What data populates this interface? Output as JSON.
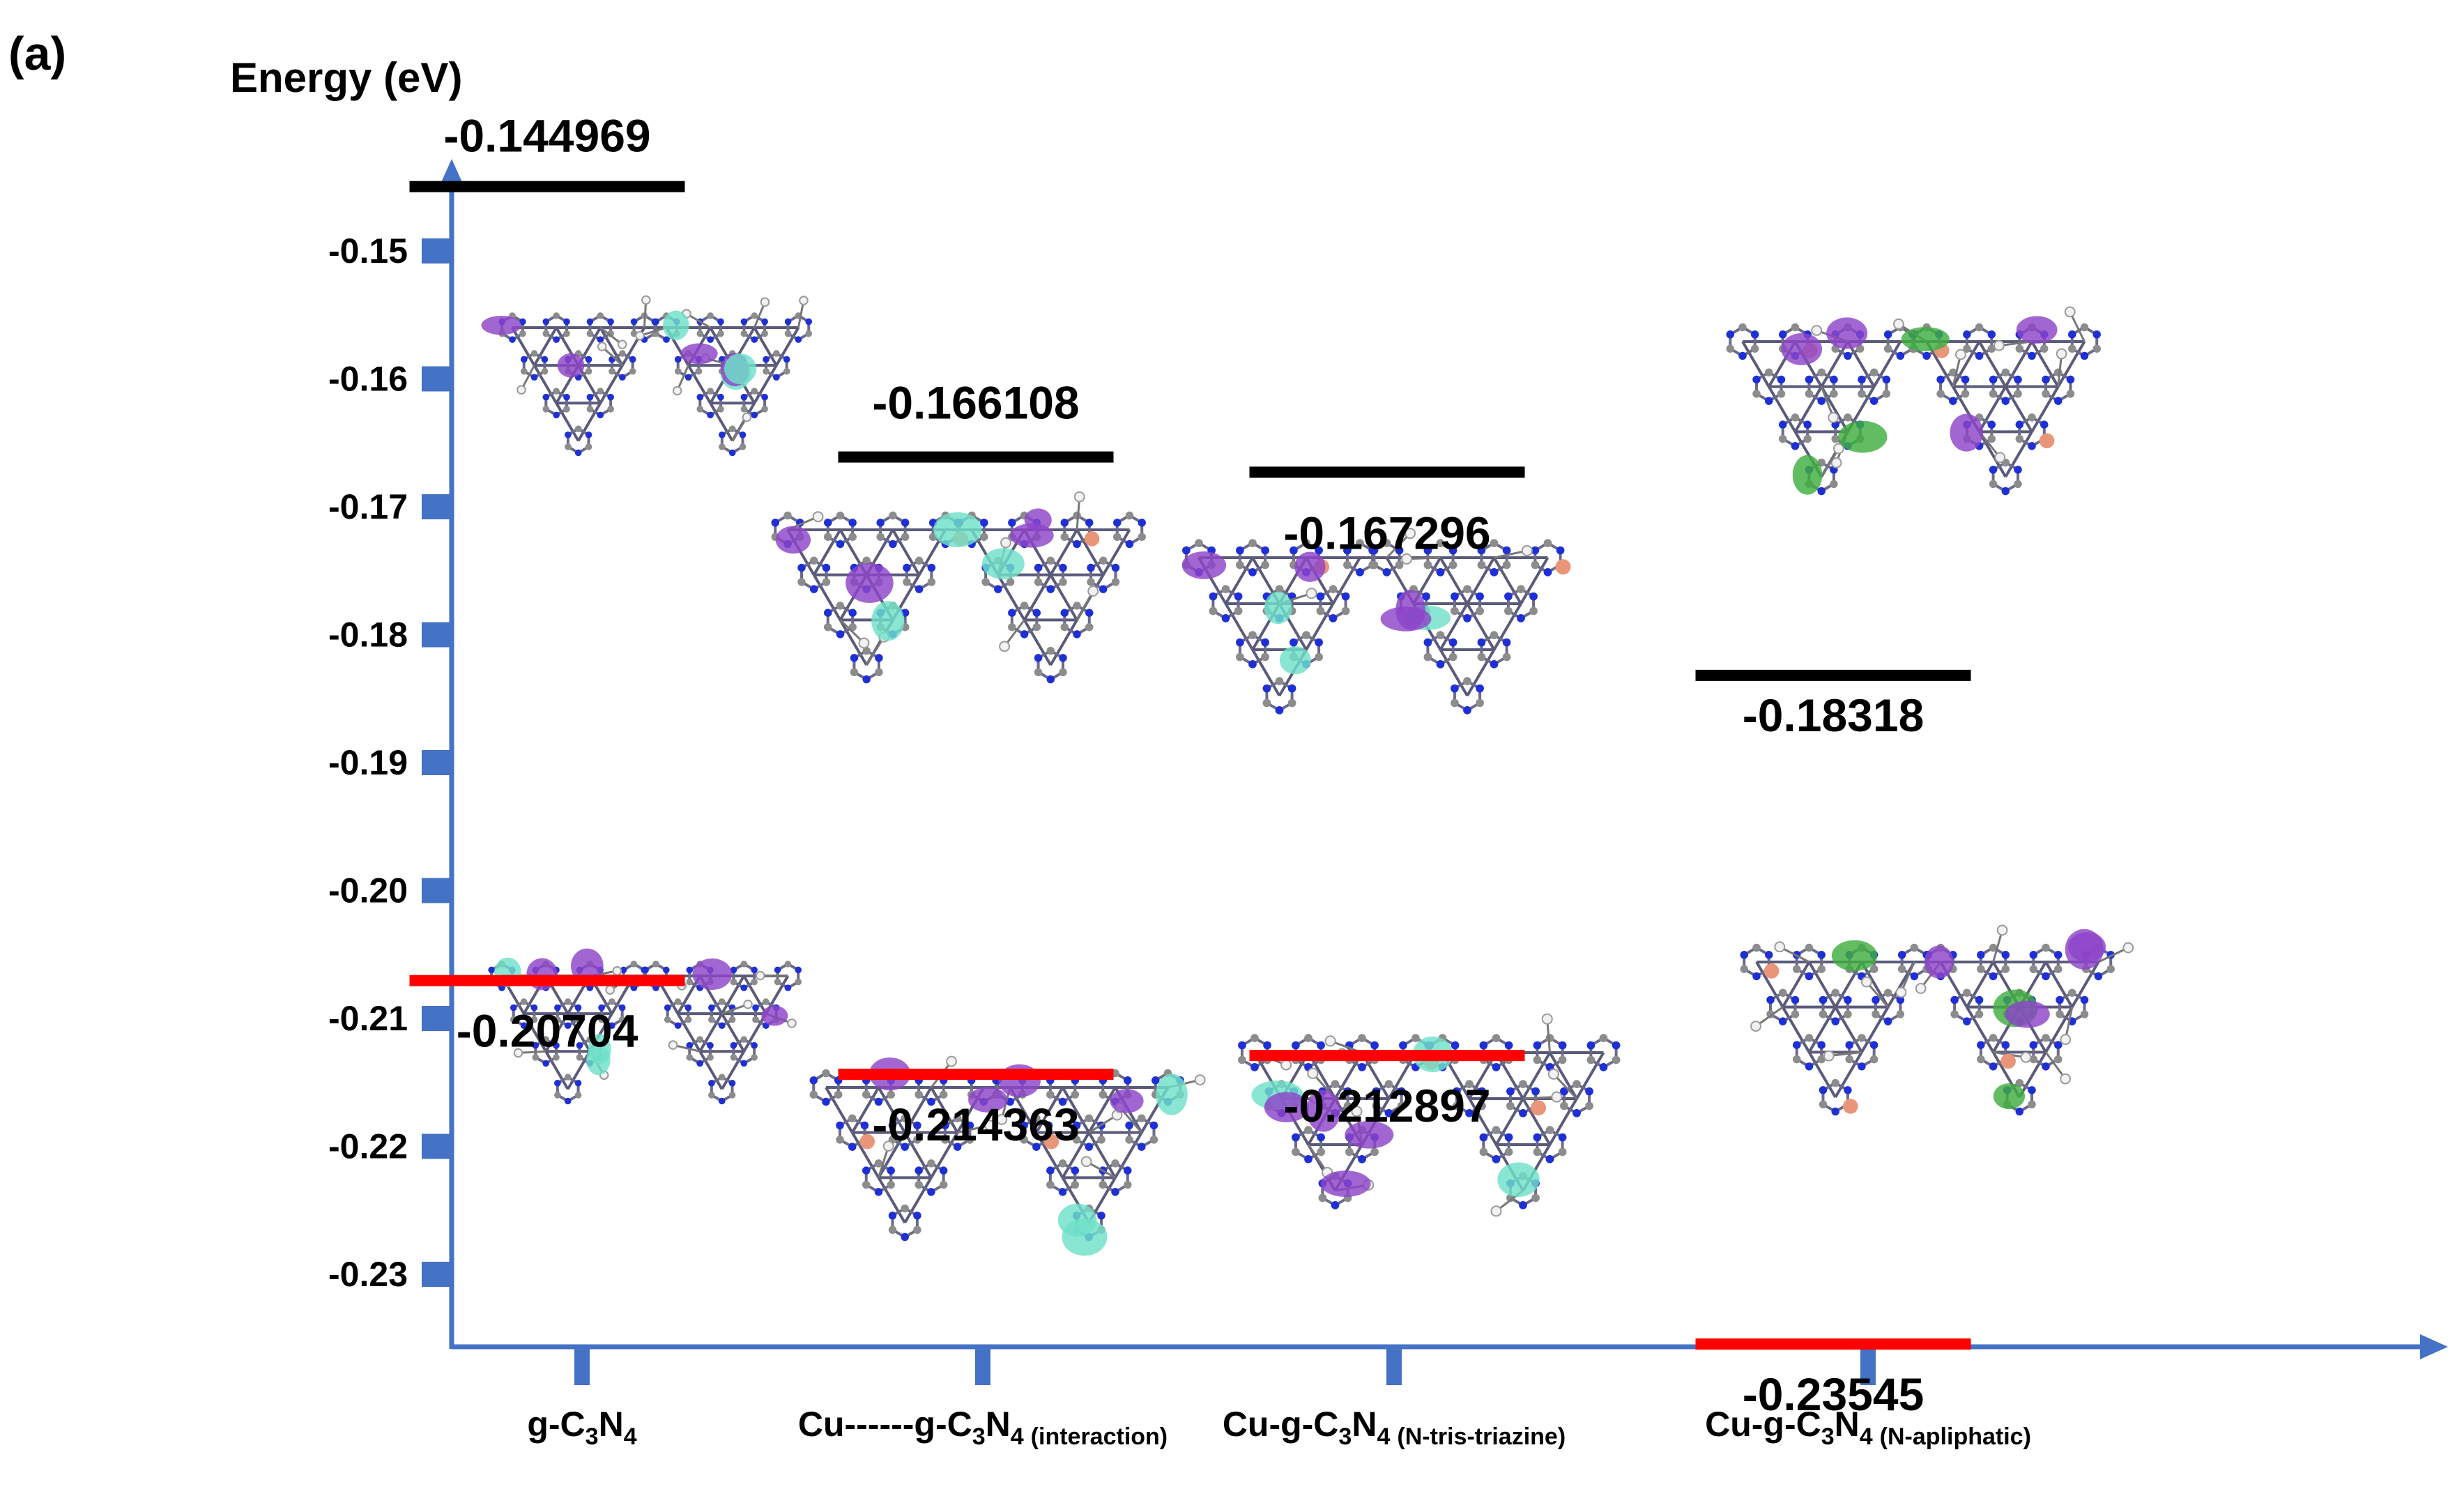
{
  "panel_label": "(a)",
  "colors": {
    "axis": "#4472C4",
    "lumo": "#000000",
    "homo": "#FF0000",
    "atom_c": "#8C8C8C",
    "atom_n": "#1F2FD6",
    "atom_h": "#F2F2F2",
    "atom_cu": "#E8957A",
    "atom_o": "#D82020",
    "atom_f": "#9BE08F",
    "orbital_a": "#8E44C9",
    "orbital_b": "#6FE0C8",
    "orbital_c": "#3FAF3F"
  },
  "chart_data": {
    "type": "energy-level diagram",
    "ylabel": "Energy (eV)",
    "ylim": [
      -0.235,
      -0.145
    ],
    "yticks": [
      -0.15,
      -0.16,
      -0.17,
      -0.18,
      -0.19,
      -0.2,
      -0.21,
      -0.22,
      -0.23
    ],
    "ytick_labels": [
      "-0.15",
      "-0.16",
      "-0.17",
      "-0.18",
      "-0.19",
      "-0.20",
      "-0.21",
      "-0.22",
      "-0.23"
    ],
    "categories": [
      {
        "base": "g-C",
        "n1": "3",
        "mid": "N",
        "n2": "4",
        "qualifier": ""
      },
      {
        "base": "Cu------g-C",
        "n1": "3",
        "mid": "N",
        "n2": "4",
        "qualifier": "(interaction)"
      },
      {
        "base": "Cu-g-C",
        "n1": "3",
        "mid": "N",
        "n2": "4",
        "qualifier": "(N-tris-triazine)"
      },
      {
        "base": "Cu-g-C",
        "n1": "3",
        "mid": "N",
        "n2": "4",
        "qualifier": "(N-apliphatic)"
      }
    ],
    "series": [
      {
        "name": "",
        "color": "#000000",
        "values": [
          -0.144969,
          -0.166108,
          -0.167296,
          -0.18318
        ],
        "labels": [
          "-0.144969",
          "-0.166108",
          "-0.167296",
          "-0.18318"
        ]
      },
      {
        "name": "",
        "color": "#FF0000",
        "values": [
          -0.20704,
          -0.214363,
          -0.212897,
          -0.23545
        ],
        "labels": [
          "-0.20704",
          "-0.214363",
          "-0.212897",
          "-0.23545"
        ]
      }
    ]
  }
}
